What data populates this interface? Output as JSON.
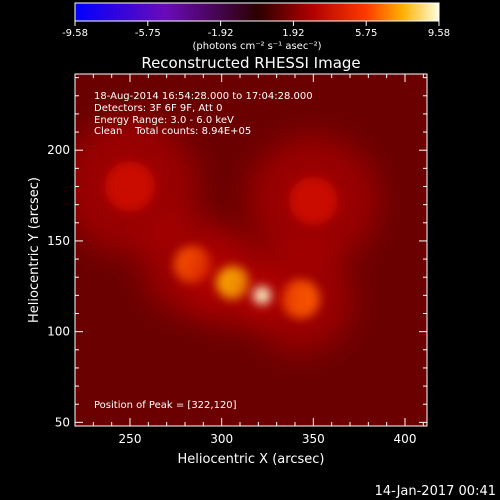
{
  "chart_data": {
    "type": "heatmap",
    "title": "Reconstructed RHESSI Image",
    "xlabel": "Heliocentric X (arcsec)",
    "ylabel": "Heliocentric Y (arcsec)",
    "xlim": [
      220,
      412
    ],
    "ylim": [
      48,
      242
    ],
    "x_ticks": [
      250,
      300,
      350,
      400
    ],
    "y_ticks": [
      50,
      100,
      150,
      200
    ],
    "colorbar": {
      "ticks": [
        "-9.58",
        "-5.75",
        "-1.92",
        "1.92",
        "5.75",
        "9.58"
      ],
      "units": "(photons cm⁻² s⁻¹ asec⁻²)",
      "range": [
        -9.58,
        9.58
      ],
      "colormap": "blue-purple-red-yellow-white"
    },
    "info_lines": [
      "18-Aug-2014 16:54:28.000 to 17:04:28.000",
      "Detectors: 3F 6F 9F, Att 0",
      "Energy Range: 3.0 - 6.0 keV",
      "Clean    Total counts: 8.94E+05"
    ],
    "peak_label": "Position of Peak = [322,120]",
    "peak": {
      "x": 322,
      "y": 120
    },
    "sources": [
      {
        "x": 322,
        "y": 120,
        "amp": 9.58
      },
      {
        "x": 306,
        "y": 127,
        "amp": 6.2
      },
      {
        "x": 284,
        "y": 137,
        "amp": 5.4
      },
      {
        "x": 343,
        "y": 118,
        "amp": 5.0
      },
      {
        "x": 350,
        "y": 172,
        "amp": 3.2
      },
      {
        "x": 250,
        "y": 180,
        "amp": 2.8
      }
    ]
  },
  "footer": {
    "date": "14-Jan-2017 00:41"
  }
}
